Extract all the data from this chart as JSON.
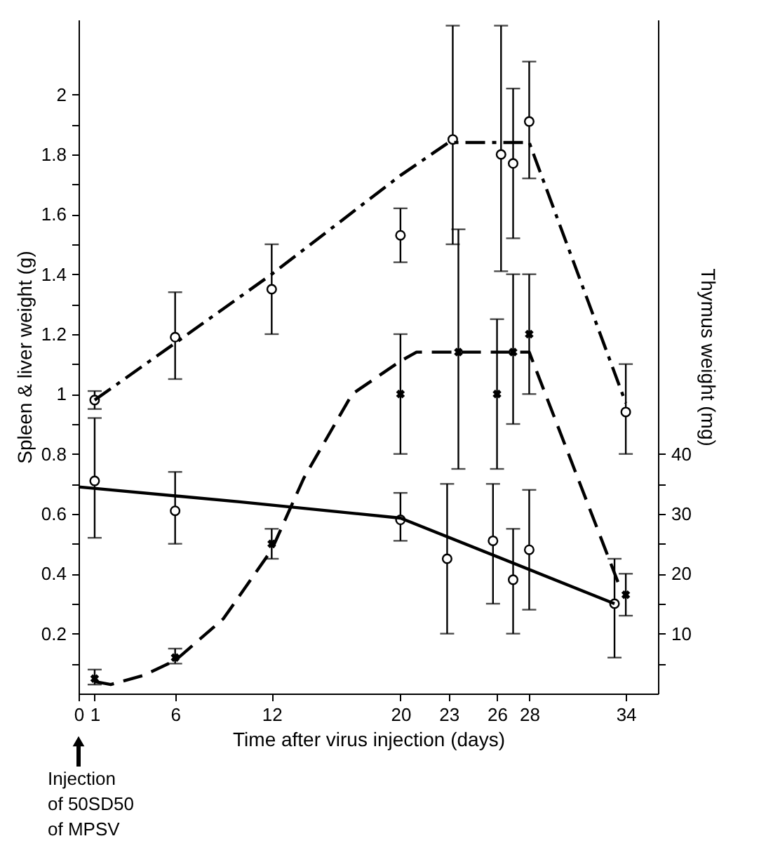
{
  "chart_data": {
    "type": "line",
    "xlabel": "Time after virus injection (days)",
    "ylabel": "Spleen & liver weight (g)",
    "y2label": "Thymus weight (mg)",
    "xlim": [
      0,
      36
    ],
    "xticks": [
      0,
      1,
      6,
      12,
      20,
      23,
      26,
      28,
      34
    ],
    "ylim": [
      0,
      2.25
    ],
    "yticks": [
      {
        "value": 0.1,
        "label": null
      },
      0.2,
      {
        "value": 0.3,
        "label": null
      },
      0.4,
      {
        "value": 0.5,
        "label": null
      },
      0.6,
      {
        "value": 0.7,
        "label": null
      },
      0.8,
      {
        "value": 0.9,
        "label": null
      },
      1,
      {
        "value": 1.1,
        "label": null
      },
      1.2,
      {
        "value": 1.3,
        "label": null
      },
      1.4,
      {
        "value": 1.5,
        "label": null
      },
      1.6,
      {
        "value": 1.7,
        "label": null
      },
      1.8,
      {
        "value": 1.9,
        "label": null
      },
      2
    ],
    "y2lim": [
      0,
      112.5
    ],
    "y2ticks": [
      {
        "value": 5,
        "label": null
      },
      10,
      {
        "value": 15,
        "label": null
      },
      20,
      {
        "value": 25,
        "label": null
      },
      30,
      {
        "value": 35,
        "label": null
      },
      40
    ],
    "grid": false,
    "annotations": [
      "Injection\nof 50SD50\nof MPSV"
    ],
    "series": [
      {
        "type": "scatter",
        "marker": "circle",
        "color": "#000000",
        "x": [
          1,
          6,
          12,
          20,
          23.25,
          26.25,
          27,
          28,
          34
        ],
        "values": [
          0.98,
          1.19,
          1.35,
          1.53,
          1.85,
          1.8,
          1.77,
          1.91,
          0.94
        ],
        "errors": [
          [
            0.95,
            1.01
          ],
          [
            1.05,
            1.34
          ],
          [
            1.2,
            1.5
          ],
          [
            1.44,
            1.62
          ],
          [
            1.5,
            2.23
          ],
          [
            1.41,
            2.23
          ],
          [
            1.52,
            2.02
          ],
          [
            1.72,
            2.11
          ],
          [
            0.8,
            1.1
          ]
        ]
      },
      {
        "line_style": "dashdot",
        "color": "#000000",
        "x": [
          1,
          6,
          12,
          20,
          23,
          28,
          34
        ],
        "values": [
          0.98,
          1.17,
          1.4,
          1.73,
          1.84,
          1.84,
          0.97
        ]
      },
      {
        "type": "scatter",
        "marker": "cross",
        "color": "#000000",
        "x": [
          1,
          6,
          12,
          20,
          23.6,
          26,
          27,
          28,
          34
        ],
        "values": [
          0.05,
          0.12,
          0.5,
          1.0,
          1.14,
          1.0,
          1.14,
          1.2,
          0.33
        ],
        "errors": [
          [
            0.03,
            0.08
          ],
          [
            0.1,
            0.15
          ],
          [
            0.45,
            0.55
          ],
          [
            0.8,
            1.2
          ],
          [
            0.75,
            1.55
          ],
          [
            0.75,
            1.25
          ],
          [
            0.9,
            1.4
          ],
          [
            1.0,
            1.4
          ],
          [
            0.26,
            0.4
          ]
        ]
      },
      {
        "line_style": "dashed",
        "color": "#000000",
        "x": [
          1,
          2,
          4,
          6,
          9,
          12,
          14,
          17,
          20,
          21,
          28,
          33.6
        ],
        "values": [
          0.04,
          0.03,
          0.06,
          0.11,
          0.25,
          0.48,
          0.72,
          1.0,
          1.11,
          1.14,
          1.14,
          0.36
        ]
      },
      {
        "type": "scatter",
        "marker": "circle",
        "axis": "y2",
        "color": "#000000",
        "x": [
          1,
          6,
          20,
          22.9,
          25.75,
          27,
          28,
          33.3
        ],
        "values": [
          35.5,
          30.5,
          29,
          22.5,
          25.5,
          19,
          24,
          15
        ],
        "errors": [
          [
            26,
            46
          ],
          [
            25,
            37
          ],
          [
            25.5,
            33.5
          ],
          [
            10,
            35
          ],
          [
            15,
            35
          ],
          [
            10,
            27.5
          ],
          [
            14,
            34
          ],
          [
            6,
            22.5
          ]
        ]
      },
      {
        "line_style": "solid",
        "axis": "y2",
        "color": "#000000",
        "x": [
          0,
          2,
          10,
          20,
          33.3
        ],
        "values": [
          34.5,
          34,
          32,
          29.3,
          15
        ]
      }
    ]
  }
}
